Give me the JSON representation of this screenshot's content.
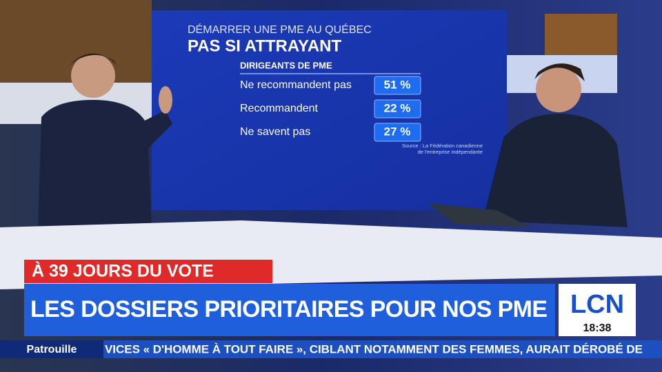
{
  "screen": {
    "kicker": "DÉMARRER UNE PME AU QUÉBEC",
    "title": "PAS SI ATTRAYANT",
    "subtitle": "DIRIGEANTS DE PME",
    "rows": [
      {
        "label": "Ne recommandent pas",
        "value": "51 %"
      },
      {
        "label": "Recommandent",
        "value": "22 %"
      },
      {
        "label": "Ne savent pas",
        "value": "27 %"
      }
    ],
    "source": [
      "Source : La Fédération canadienne",
      "de l'entreprise indépendante"
    ]
  },
  "lower_third": {
    "banner": "À 39 JOURS DU VOTE",
    "headline": "LES DOSSIERS PRIORITAIRES POUR NOS PME",
    "logo": "LCN",
    "time": "18:38"
  },
  "ticker": {
    "label": "Patrouille",
    "text": "VICES « D'HOMME À TOUT FAIRE », CIBLANT NOTAMMENT DES FEMMES, AURAIT DÉROBÉ DE"
  }
}
